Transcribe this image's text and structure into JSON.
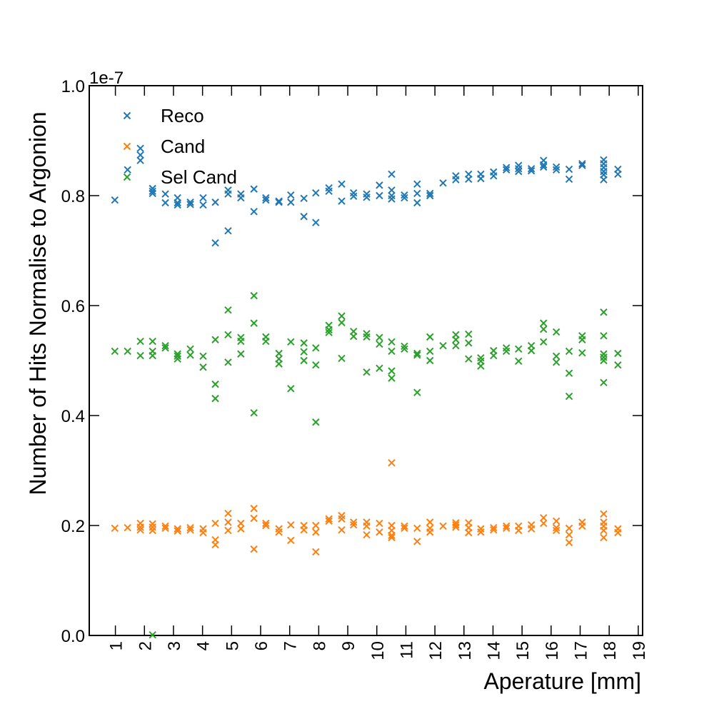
{
  "chart_data": {
    "type": "scatter",
    "xlabel": "Aperature [mm]",
    "ylabel": "Number of Hits Normalise to Argonion",
    "y_offset_label": "1e-7",
    "xlim": [
      0.1,
      19.15
    ],
    "ylim": [
      0,
      1.0
    ],
    "xticks": [
      1,
      2,
      3,
      4,
      5,
      6,
      7,
      8,
      9,
      10,
      11,
      12,
      13,
      14,
      15,
      16,
      17,
      18,
      19
    ],
    "yticks": [
      {
        "value": 0,
        "label": "0.0"
      },
      0.2,
      0.4,
      0.6,
      0.8,
      {
        "value": 1.0,
        "label": "1.0"
      }
    ],
    "legend": "upper left",
    "series": [
      {
        "name": "Reco",
        "color": "#1f77b4",
        "x": [
          0.98,
          1.42,
          1.86,
          1.86,
          1.86,
          2.28,
          2.28,
          2.28,
          2.72,
          2.72,
          3.14,
          3.14,
          3.14,
          3.58,
          3.58,
          4.02,
          4.02,
          4.44,
          4.44,
          4.88,
          4.88,
          4.88,
          5.32,
          5.32,
          5.77,
          5.77,
          6.18,
          6.18,
          6.63,
          6.63,
          7.04,
          7.04,
          7.49,
          7.49,
          7.9,
          7.9,
          8.35,
          8.35,
          8.79,
          8.79,
          9.2,
          9.2,
          9.65,
          9.65,
          10.09,
          10.09,
          10.51,
          10.51,
          10.51,
          10.51,
          10.95,
          10.95,
          11.39,
          11.39,
          11.39,
          11.83,
          11.83,
          12.28,
          12.72,
          12.72,
          13.16,
          13.16,
          13.58,
          13.58,
          14.02,
          14.02,
          14.46,
          14.46,
          14.88,
          14.88,
          14.88,
          15.32,
          15.32,
          15.74,
          15.74,
          15.74,
          16.18,
          16.18,
          16.62,
          16.62,
          17.07,
          17.07,
          17.81,
          17.81,
          17.81,
          17.81,
          17.81,
          17.81,
          18.3,
          18.3
        ],
        "y": [
          0.792,
          0.847,
          0.886,
          0.874,
          0.864,
          0.813,
          0.808,
          0.804,
          0.803,
          0.787,
          0.796,
          0.787,
          0.783,
          0.788,
          0.784,
          0.796,
          0.783,
          0.788,
          0.714,
          0.81,
          0.803,
          0.736,
          0.803,
          0.796,
          0.812,
          0.771,
          0.796,
          0.792,
          0.79,
          0.788,
          0.801,
          0.788,
          0.795,
          0.762,
          0.805,
          0.751,
          0.814,
          0.808,
          0.821,
          0.79,
          0.805,
          0.799,
          0.803,
          0.797,
          0.819,
          0.8,
          0.839,
          0.81,
          0.8,
          0.794,
          0.801,
          0.796,
          0.821,
          0.804,
          0.787,
          0.804,
          0.8,
          0.823,
          0.836,
          0.829,
          0.839,
          0.83,
          0.839,
          0.831,
          0.843,
          0.836,
          0.851,
          0.847,
          0.855,
          0.849,
          0.844,
          0.849,
          0.845,
          0.864,
          0.856,
          0.852,
          0.852,
          0.847,
          0.848,
          0.83,
          0.858,
          0.855,
          0.865,
          0.858,
          0.851,
          0.844,
          0.838,
          0.829,
          0.848,
          0.839
        ]
      },
      {
        "name": "Cand",
        "color": "#ff7f0e",
        "x": [
          0.98,
          1.42,
          1.86,
          1.86,
          1.86,
          2.28,
          2.28,
          2.28,
          2.72,
          2.72,
          3.14,
          3.14,
          3.58,
          3.58,
          4.02,
          4.02,
          4.44,
          4.44,
          4.44,
          4.88,
          4.88,
          4.88,
          5.32,
          5.32,
          5.77,
          5.77,
          5.77,
          6.18,
          6.18,
          6.63,
          6.63,
          7.04,
          7.04,
          7.49,
          7.49,
          7.9,
          7.9,
          7.9,
          8.35,
          8.35,
          8.79,
          8.79,
          8.79,
          9.2,
          9.2,
          9.65,
          9.65,
          9.65,
          10.09,
          10.09,
          10.51,
          10.51,
          10.51,
          10.51,
          10.51,
          10.95,
          10.95,
          11.39,
          11.39,
          11.83,
          11.83,
          11.83,
          12.28,
          12.72,
          12.72,
          12.72,
          13.16,
          13.16,
          13.16,
          13.58,
          13.58,
          14.02,
          14.02,
          14.46,
          14.46,
          14.88,
          14.88,
          15.32,
          15.32,
          15.74,
          15.74,
          16.18,
          16.18,
          16.18,
          16.62,
          16.62,
          16.62,
          17.07,
          17.07,
          17.81,
          17.81,
          17.81,
          17.81,
          17.81,
          18.3,
          18.3
        ],
        "y": [
          0.195,
          0.196,
          0.204,
          0.197,
          0.192,
          0.203,
          0.197,
          0.191,
          0.199,
          0.195,
          0.194,
          0.19,
          0.196,
          0.192,
          0.194,
          0.187,
          0.204,
          0.174,
          0.165,
          0.222,
          0.206,
          0.191,
          0.204,
          0.194,
          0.231,
          0.213,
          0.157,
          0.204,
          0.2,
          0.194,
          0.188,
          0.201,
          0.173,
          0.2,
          0.192,
          0.2,
          0.188,
          0.152,
          0.212,
          0.208,
          0.218,
          0.212,
          0.192,
          0.206,
          0.201,
          0.206,
          0.199,
          0.183,
          0.204,
          0.188,
          0.314,
          0.2,
          0.191,
          0.182,
          0.178,
          0.199,
          0.195,
          0.195,
          0.171,
          0.206,
          0.195,
          0.188,
          0.199,
          0.205,
          0.201,
          0.197,
          0.205,
          0.196,
          0.187,
          0.194,
          0.188,
          0.196,
          0.192,
          0.199,
          0.195,
          0.199,
          0.191,
          0.201,
          0.194,
          0.214,
          0.204,
          0.208,
          0.196,
          0.191,
          0.195,
          0.183,
          0.169,
          0.206,
          0.199,
          0.221,
          0.206,
          0.199,
          0.191,
          0.178,
          0.194,
          0.187
        ]
      },
      {
        "name": "Sel Cand",
        "color": "#2ca02c",
        "x": [
          0.98,
          1.42,
          1.86,
          1.86,
          2.28,
          2.28,
          2.28,
          2.28,
          2.72,
          2.72,
          3.14,
          3.14,
          3.14,
          3.58,
          3.58,
          4.02,
          4.02,
          4.44,
          4.44,
          4.44,
          4.88,
          4.88,
          4.88,
          5.32,
          5.32,
          5.32,
          5.77,
          5.77,
          5.77,
          6.18,
          6.18,
          6.63,
          6.63,
          6.63,
          7.04,
          7.04,
          7.49,
          7.49,
          7.49,
          7.9,
          7.9,
          7.9,
          8.35,
          8.35,
          8.35,
          8.79,
          8.79,
          8.79,
          9.2,
          9.2,
          9.65,
          9.65,
          9.65,
          10.09,
          10.09,
          10.09,
          10.51,
          10.51,
          10.51,
          10.51,
          10.95,
          10.95,
          11.39,
          11.39,
          11.39,
          11.83,
          11.83,
          11.83,
          12.28,
          12.72,
          12.72,
          12.72,
          13.16,
          13.16,
          13.16,
          13.58,
          13.58,
          13.58,
          14.02,
          14.02,
          14.46,
          14.46,
          14.88,
          14.88,
          15.32,
          15.32,
          15.74,
          15.74,
          15.74,
          16.18,
          16.18,
          16.18,
          16.62,
          16.62,
          16.62,
          17.07,
          17.07,
          17.07,
          17.81,
          17.81,
          17.81,
          17.81,
          17.81,
          17.81,
          18.3,
          18.3
        ],
        "y": [
          0.517,
          0.517,
          0.535,
          0.509,
          0.535,
          0.517,
          0.509,
          0.001,
          0.527,
          0.523,
          0.512,
          0.508,
          0.503,
          0.521,
          0.51,
          0.508,
          0.488,
          0.538,
          0.457,
          0.431,
          0.592,
          0.547,
          0.497,
          0.542,
          0.535,
          0.512,
          0.618,
          0.568,
          0.405,
          0.543,
          0.535,
          0.513,
          0.503,
          0.494,
          0.534,
          0.449,
          0.532,
          0.516,
          0.5,
          0.523,
          0.492,
          0.388,
          0.564,
          0.556,
          0.551,
          0.581,
          0.569,
          0.504,
          0.553,
          0.544,
          0.549,
          0.543,
          0.479,
          0.542,
          0.53,
          0.486,
          0.534,
          0.517,
          0.481,
          0.468,
          0.526,
          0.521,
          0.513,
          0.51,
          0.442,
          0.543,
          0.517,
          0.5,
          0.527,
          0.547,
          0.538,
          0.527,
          0.548,
          0.532,
          0.503,
          0.505,
          0.499,
          0.49,
          0.518,
          0.509,
          0.523,
          0.517,
          0.521,
          0.499,
          0.527,
          0.518,
          0.568,
          0.557,
          0.534,
          0.552,
          0.508,
          0.497,
          0.517,
          0.477,
          0.435,
          0.545,
          0.538,
          0.514,
          0.588,
          0.545,
          0.512,
          0.506,
          0.5,
          0.46,
          0.513,
          0.492
        ]
      }
    ]
  }
}
